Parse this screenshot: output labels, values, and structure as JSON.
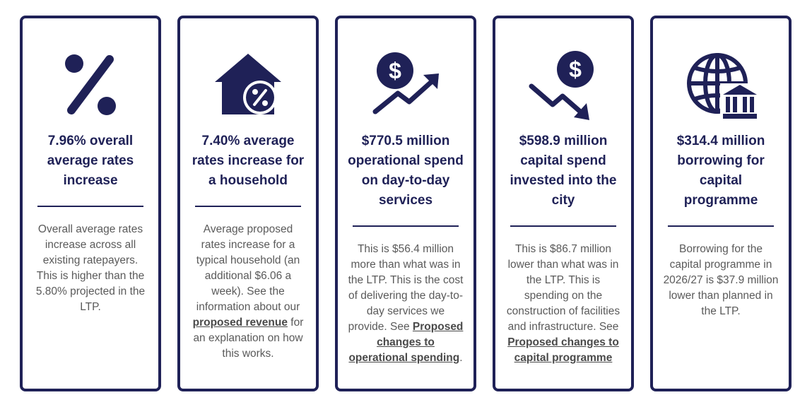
{
  "colors": {
    "navy": "#1f2157",
    "text": "#5a5a5a"
  },
  "cards": [
    {
      "icon": "percent-icon",
      "title": "7.96% overall average rates increase",
      "description": "Overall average rates increase across all existing ratepayers. This is higher than the 5.80% projected in the LTP."
    },
    {
      "icon": "house-percent-icon",
      "title": "7.40% average rates increase for a household",
      "description_before": "Average proposed rates increase for a typical household (an additional $6.06 a week). See the information about our ",
      "link": "proposed revenue",
      "description_after": " for an explanation on how this works."
    },
    {
      "icon": "dollar-trend-up-icon",
      "title": "$770.5 million operational spend on day-to-day services",
      "description_before": "This is $56.4 million more than what was in the LTP. This is the cost of delivering the day-to-day services we provide. See ",
      "link": "Proposed changes to operational spending",
      "description_after": "."
    },
    {
      "icon": "dollar-trend-down-icon",
      "title": "$598.9 million capital spend invested into the city",
      "description_before": "This is $86.7 million lower than what was in the LTP. This is spending on the construction of facilities and infrastructure. See ",
      "link": "Proposed changes to capital programme",
      "description_after": ""
    },
    {
      "icon": "globe-bank-icon",
      "title": "$314.4 million borrowing for capital programme",
      "description": "Borrowing for the capital programme in 2026/27 is $37.9 million lower than planned in the LTP."
    }
  ]
}
